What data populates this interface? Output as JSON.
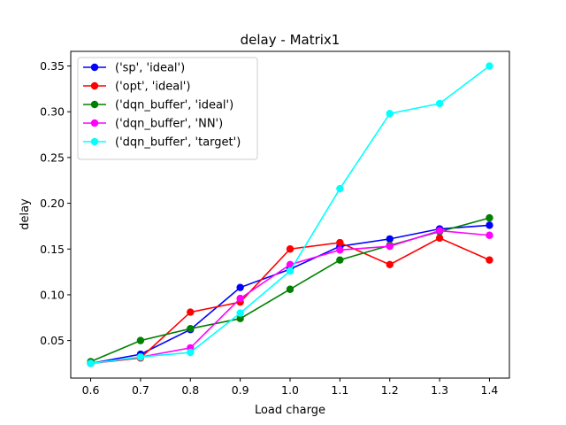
{
  "chart_data": {
    "type": "line",
    "title": "delay - Matrix1",
    "xlabel": "Load charge",
    "ylabel": "delay",
    "x": [
      0.6,
      0.7,
      0.8,
      0.9,
      1.0,
      1.1,
      1.2,
      1.3,
      1.4
    ],
    "xticks": [
      "0.6",
      "0.7",
      "0.8",
      "0.9",
      "1.0",
      "1.1",
      "1.2",
      "1.3",
      "1.4"
    ],
    "yticks": [
      "0.05",
      "0.10",
      "0.15",
      "0.20",
      "0.25",
      "0.30",
      "0.35"
    ],
    "xlim": [
      0.56,
      1.44
    ],
    "ylim": [
      0.009,
      0.366
    ],
    "grid": false,
    "legend_position": "top-left",
    "series": [
      {
        "name": "('sp', 'ideal')",
        "color": "#0000ff",
        "values": [
          0.025,
          0.035,
          0.062,
          0.108,
          0.128,
          0.153,
          0.161,
          0.172,
          0.176
        ]
      },
      {
        "name": "('opt', 'ideal')",
        "color": "#ff0000",
        "values": [
          0.025,
          0.031,
          0.081,
          0.092,
          0.15,
          0.157,
          0.133,
          0.162,
          0.138
        ]
      },
      {
        "name": "('dqn_buffer', 'ideal')",
        "color": "#008000",
        "values": [
          0.027,
          0.05,
          0.063,
          0.074,
          0.106,
          0.138,
          0.154,
          0.169,
          0.184
        ]
      },
      {
        "name": "('dqn_buffer', 'NN')",
        "color": "#ff00ff",
        "values": [
          0.025,
          0.032,
          0.042,
          0.096,
          0.133,
          0.149,
          0.153,
          0.17,
          0.165
        ]
      },
      {
        "name": "('dqn_buffer', 'target')",
        "color": "#00ffff",
        "values": [
          0.025,
          0.032,
          0.037,
          0.08,
          0.126,
          0.216,
          0.298,
          0.309,
          0.35
        ]
      }
    ]
  }
}
